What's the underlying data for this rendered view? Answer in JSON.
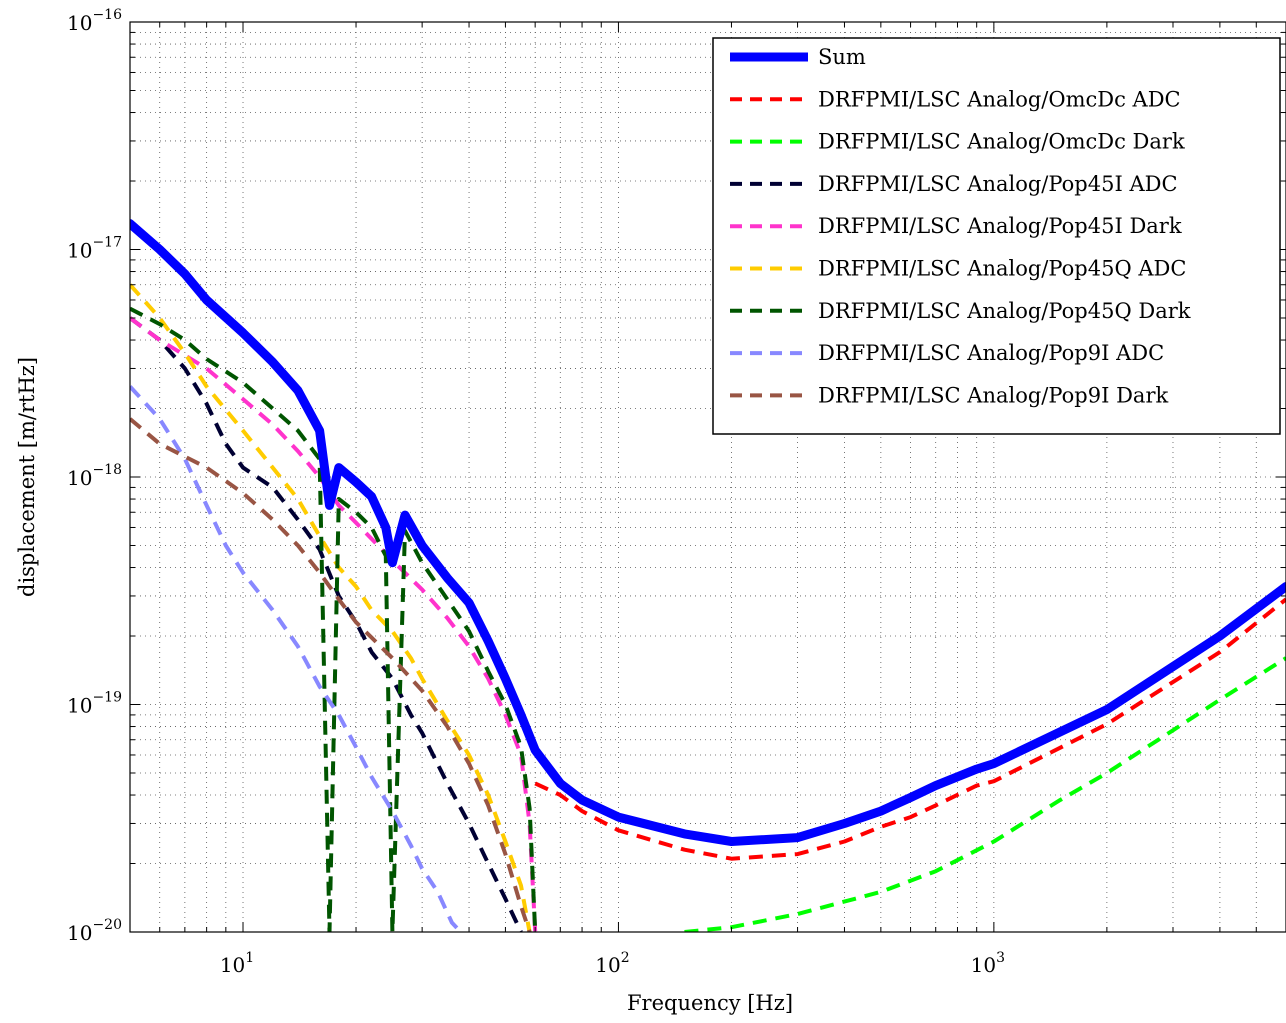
{
  "chart_data": {
    "type": "line",
    "title": "",
    "xlabel": "Frequency [Hz]",
    "ylabel": "displacement [m/rtHz]",
    "xscale": "log",
    "yscale": "log",
    "xlim": [
      5,
      6000
    ],
    "ylim": [
      1e-20,
      1e-16
    ],
    "grid": true,
    "legend_position": "top-right",
    "x_ticks": [
      {
        "value": 10,
        "base": "10",
        "exp": "1"
      },
      {
        "value": 100,
        "base": "10",
        "exp": "2"
      },
      {
        "value": 1000,
        "base": "10",
        "exp": "3"
      }
    ],
    "y_ticks": [
      {
        "value": 1e-16,
        "base": "10",
        "exp": "−16"
      },
      {
        "value": 1e-17,
        "base": "10",
        "exp": "−17"
      },
      {
        "value": 1e-18,
        "base": "10",
        "exp": "−18"
      },
      {
        "value": 1e-19,
        "base": "10",
        "exp": "−19"
      },
      {
        "value": 1e-20,
        "base": "10",
        "exp": "−20"
      }
    ],
    "series": [
      {
        "name": "Sum",
        "color": "#0000ff",
        "style": "solid",
        "points": [
          [
            5,
            1.3e-17
          ],
          [
            6,
            1e-17
          ],
          [
            7,
            7.8e-18
          ],
          [
            8,
            6e-18
          ],
          [
            10,
            4.3e-18
          ],
          [
            12,
            3.2e-18
          ],
          [
            14,
            2.4e-18
          ],
          [
            16,
            1.6e-18
          ],
          [
            17,
            7.5e-19
          ],
          [
            18,
            1.1e-18
          ],
          [
            20,
            9.5e-19
          ],
          [
            22,
            8.2e-19
          ],
          [
            24,
            6e-19
          ],
          [
            25,
            4.2e-19
          ],
          [
            27,
            6.8e-19
          ],
          [
            30,
            5e-19
          ],
          [
            35,
            3.6e-19
          ],
          [
            40,
            2.8e-19
          ],
          [
            45,
            1.9e-19
          ],
          [
            50,
            1.3e-19
          ],
          [
            55,
            9e-20
          ],
          [
            60,
            6.3e-20
          ],
          [
            70,
            4.5e-20
          ],
          [
            80,
            3.8e-20
          ],
          [
            100,
            3.2e-20
          ],
          [
            150,
            2.7e-20
          ],
          [
            200,
            2.5e-20
          ],
          [
            300,
            2.6e-20
          ],
          [
            400,
            3e-20
          ],
          [
            500,
            3.4e-20
          ],
          [
            600,
            3.9e-20
          ],
          [
            700,
            4.4e-20
          ],
          [
            900,
            5.2e-20
          ],
          [
            1000,
            5.5e-20
          ],
          [
            2000,
            9.5e-20
          ],
          [
            4000,
            2e-19
          ],
          [
            6000,
            3.3e-19
          ]
        ]
      },
      {
        "name": "DRFPMI/LSC Analog/OmcDc ADC",
        "color": "#ff0000",
        "style": "dashed",
        "points": [
          [
            60,
            4.5e-20
          ],
          [
            70,
            4e-20
          ],
          [
            80,
            3.4e-20
          ],
          [
            100,
            2.8e-20
          ],
          [
            150,
            2.3e-20
          ],
          [
            200,
            2.1e-20
          ],
          [
            300,
            2.2e-20
          ],
          [
            400,
            2.5e-20
          ],
          [
            500,
            2.9e-20
          ],
          [
            600,
            3.2e-20
          ],
          [
            700,
            3.6e-20
          ],
          [
            900,
            4.4e-20
          ],
          [
            1000,
            4.6e-20
          ],
          [
            2000,
            8.2e-20
          ],
          [
            4000,
            1.7e-19
          ],
          [
            6000,
            2.9e-19
          ]
        ]
      },
      {
        "name": "DRFPMI/LSC Analog/OmcDc Dark",
        "color": "#00ff00",
        "style": "dashed",
        "points": [
          [
            150,
            1e-20
          ],
          [
            200,
            1.05e-20
          ],
          [
            300,
            1.2e-20
          ],
          [
            500,
            1.5e-20
          ],
          [
            700,
            1.85e-20
          ],
          [
            1000,
            2.5e-20
          ],
          [
            1500,
            3.8e-20
          ],
          [
            2000,
            5e-20
          ],
          [
            3000,
            7.7e-20
          ],
          [
            4000,
            1.05e-19
          ],
          [
            6000,
            1.6e-19
          ]
        ]
      },
      {
        "name": "DRFPMI/LSC Analog/Pop45I ADC",
        "color": "#000033",
        "style": "dashed",
        "points": [
          [
            5,
            5e-18
          ],
          [
            6,
            4e-18
          ],
          [
            7,
            3e-18
          ],
          [
            8,
            2.1e-18
          ],
          [
            9,
            1.4e-18
          ],
          [
            10,
            1.1e-18
          ],
          [
            12,
            9e-19
          ],
          [
            14,
            6.5e-19
          ],
          [
            16,
            4.8e-19
          ],
          [
            18,
            3e-19
          ],
          [
            20,
            2.3e-19
          ],
          [
            22,
            1.7e-19
          ],
          [
            25,
            1.3e-19
          ],
          [
            28,
            9e-20
          ],
          [
            30,
            7.5e-20
          ],
          [
            35,
            4.5e-20
          ],
          [
            40,
            3e-20
          ],
          [
            45,
            2e-20
          ],
          [
            50,
            1.4e-20
          ],
          [
            55,
            1e-20
          ]
        ]
      },
      {
        "name": "DRFPMI/LSC Analog/Pop45I Dark",
        "color": "#ff33cc",
        "style": "dashed",
        "points": [
          [
            5,
            5e-18
          ],
          [
            6,
            4e-18
          ],
          [
            8,
            3e-18
          ],
          [
            10,
            2.2e-18
          ],
          [
            12,
            1.7e-18
          ],
          [
            14,
            1.3e-18
          ],
          [
            16,
            1e-18
          ],
          [
            18,
            7.5e-19
          ],
          [
            20,
            6.3e-19
          ],
          [
            25,
            4.3e-19
          ],
          [
            30,
            3.2e-19
          ],
          [
            35,
            2.4e-19
          ],
          [
            40,
            1.8e-19
          ],
          [
            45,
            1.3e-19
          ],
          [
            50,
            9e-20
          ],
          [
            55,
            6e-20
          ],
          [
            58,
            3e-20
          ],
          [
            60,
            1e-20
          ]
        ]
      },
      {
        "name": "DRFPMI/LSC Analog/Pop45Q ADC",
        "color": "#ffcc00",
        "style": "dashed",
        "points": [
          [
            5,
            7e-18
          ],
          [
            6,
            5e-18
          ],
          [
            7,
            3.5e-18
          ],
          [
            8,
            2.5e-18
          ],
          [
            10,
            1.6e-18
          ],
          [
            12,
            1.1e-18
          ],
          [
            14,
            8e-19
          ],
          [
            16,
            5.5e-19
          ],
          [
            18,
            4e-19
          ],
          [
            20,
            3.3e-19
          ],
          [
            22,
            2.6e-19
          ],
          [
            25,
            2.1e-19
          ],
          [
            28,
            1.6e-19
          ],
          [
            30,
            1.3e-19
          ],
          [
            35,
            8.5e-20
          ],
          [
            40,
            6e-20
          ],
          [
            45,
            4e-20
          ],
          [
            50,
            2.5e-20
          ],
          [
            55,
            1.6e-20
          ],
          [
            58,
            1e-20
          ]
        ]
      },
      {
        "name": "DRFPMI/LSC Analog/Pop45Q Dark",
        "color": "#005500",
        "style": "dashed",
        "points": [
          [
            5,
            5.5e-18
          ],
          [
            6,
            4.7e-18
          ],
          [
            7,
            4e-18
          ],
          [
            8,
            3.3e-18
          ],
          [
            10,
            2.6e-18
          ],
          [
            12,
            2e-18
          ],
          [
            14,
            1.6e-18
          ],
          [
            16,
            1.2e-18
          ],
          [
            17,
            1e-20
          ],
          [
            18,
            8e-19
          ],
          [
            20,
            7e-19
          ],
          [
            22,
            6e-19
          ],
          [
            24,
            4.5e-19
          ],
          [
            25,
            1e-20
          ],
          [
            27,
            5.8e-19
          ],
          [
            30,
            4.2e-19
          ],
          [
            35,
            2.9e-19
          ],
          [
            40,
            2.1e-19
          ],
          [
            45,
            1.4e-19
          ],
          [
            50,
            1e-19
          ],
          [
            55,
            6.5e-20
          ],
          [
            58,
            3.5e-20
          ],
          [
            60,
            1e-20
          ]
        ]
      },
      {
        "name": "DRFPMI/LSC Analog/Pop9I ADC",
        "color": "#8888ff",
        "style": "dashed",
        "points": [
          [
            5,
            2.5e-18
          ],
          [
            6,
            1.8e-18
          ],
          [
            7,
            1.2e-18
          ],
          [
            8,
            7.5e-19
          ],
          [
            9,
            5e-19
          ],
          [
            10,
            3.8e-19
          ],
          [
            12,
            2.6e-19
          ],
          [
            14,
            1.8e-19
          ],
          [
            16,
            1.2e-19
          ],
          [
            18,
            9e-20
          ],
          [
            20,
            6.5e-20
          ],
          [
            22,
            4.8e-20
          ],
          [
            25,
            3.4e-20
          ],
          [
            28,
            2.4e-20
          ],
          [
            30,
            1.9e-20
          ],
          [
            33,
            1.5e-20
          ],
          [
            36,
            1.1e-20
          ],
          [
            38,
            1e-20
          ]
        ]
      },
      {
        "name": "DRFPMI/LSC Analog/Pop9I Dark",
        "color": "#995544",
        "style": "dashed",
        "points": [
          [
            5,
            1.8e-18
          ],
          [
            6,
            1.4e-18
          ],
          [
            8,
            1.1e-18
          ],
          [
            10,
            8.5e-19
          ],
          [
            12,
            6.5e-19
          ],
          [
            14,
            5e-19
          ],
          [
            16,
            3.8e-19
          ],
          [
            18,
            2.9e-19
          ],
          [
            20,
            2.3e-19
          ],
          [
            25,
            1.6e-19
          ],
          [
            30,
            1.15e-19
          ],
          [
            35,
            8e-20
          ],
          [
            40,
            5.5e-20
          ],
          [
            45,
            3.6e-20
          ],
          [
            50,
            2.2e-20
          ],
          [
            55,
            1.3e-20
          ],
          [
            58,
            1e-20
          ]
        ]
      }
    ]
  }
}
